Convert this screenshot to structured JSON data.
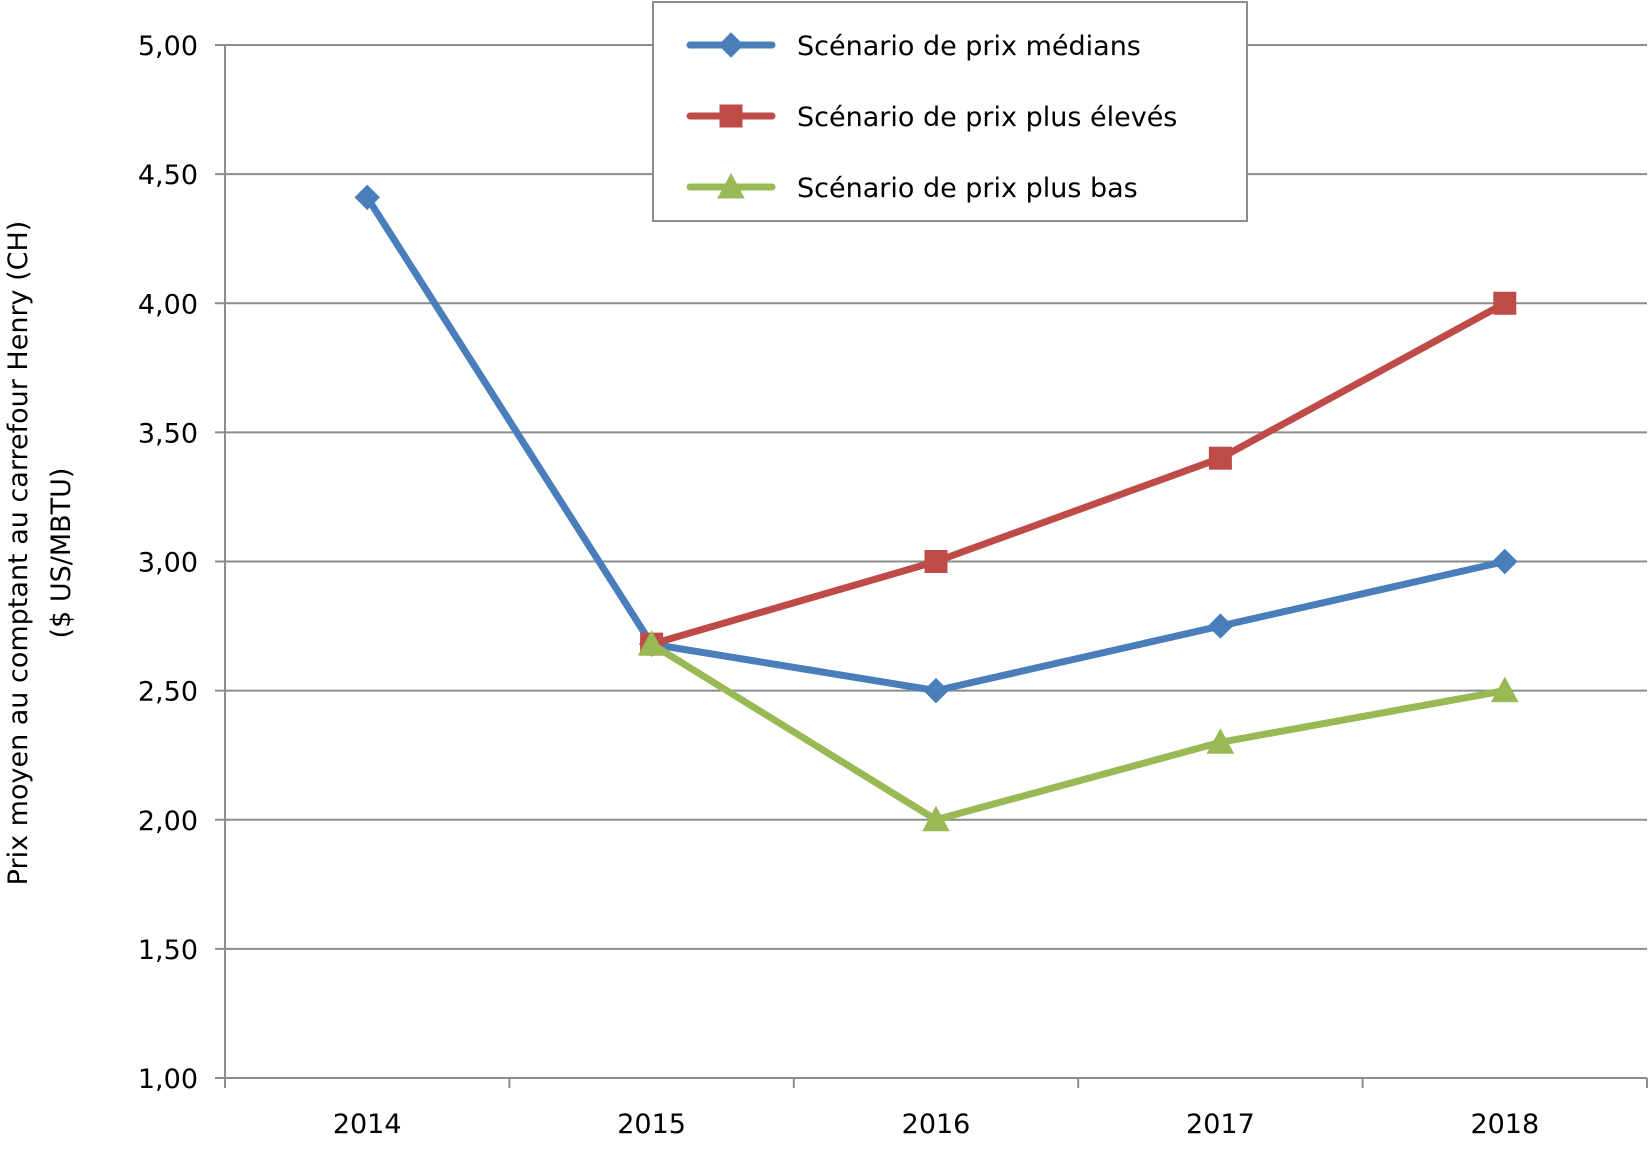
{
  "chart_data": {
    "type": "line",
    "title": "",
    "xlabel": "",
    "ylabel_line1": "Prix moyen au comptant au carrefour Henry (CH)",
    "ylabel_line2": "($ US/MBTU)",
    "categories": [
      "2014",
      "2015",
      "2016",
      "2017",
      "2018"
    ],
    "ylim": [
      1.0,
      5.0
    ],
    "yticks": [
      1.0,
      1.5,
      2.0,
      2.5,
      3.0,
      3.5,
      4.0,
      4.5,
      5.0
    ],
    "ytick_labels": [
      "1,00",
      "1,50",
      "2,00",
      "2,50",
      "3,00",
      "3,50",
      "4,00",
      "4,50",
      "5,00"
    ],
    "grid": true,
    "legend_position": "top-center",
    "series": [
      {
        "name": "Scénario de prix médians",
        "color": "#4a7ebb",
        "marker": "diamond",
        "values": [
          4.41,
          2.68,
          2.5,
          2.75,
          3.0
        ]
      },
      {
        "name": "Scénario de prix plus élevés",
        "color": "#be4b48",
        "marker": "square",
        "values": [
          null,
          2.68,
          3.0,
          3.4,
          4.0
        ]
      },
      {
        "name": "Scénario de prix plus bas",
        "color": "#98b954",
        "marker": "triangle",
        "values": [
          null,
          2.68,
          2.0,
          2.3,
          2.5
        ]
      }
    ]
  }
}
